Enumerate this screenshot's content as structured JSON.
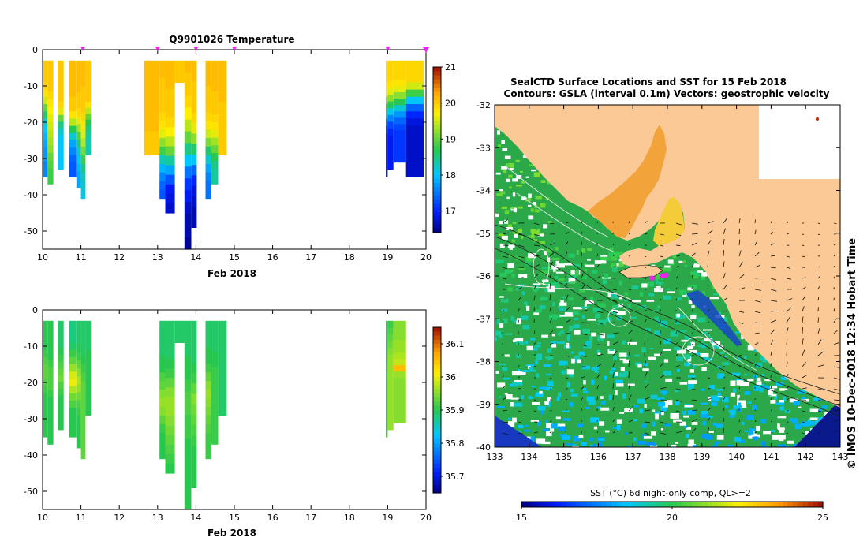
{
  "chart_data": [
    {
      "type": "heatmap",
      "title": "Q9901026  Temperature",
      "xlabel": "Feb 2018",
      "xlim": [
        10,
        20
      ],
      "ylim": [
        -55,
        0
      ],
      "x_ticks": [
        "10",
        "11",
        "12",
        "13",
        "14",
        "15",
        "16",
        "17",
        "18",
        "19",
        "20"
      ],
      "y_ticks": [
        "0",
        "-10",
        "-20",
        "-30",
        "-40",
        "-50"
      ],
      "colorbar": {
        "min": 16.4,
        "max": 21,
        "ticks": [
          "21",
          "20",
          "19",
          "18",
          "17"
        ]
      },
      "profile_markers": [
        11.05,
        13.0,
        14.0,
        15.0,
        19.0,
        20.0
      ],
      "profiles": [
        {
          "x0": 10.02,
          "x1": 10.13,
          "bottom": -35,
          "temps": [
            20.0,
            20.0,
            20.0,
            19.9,
            19.8,
            19.5,
            19.0,
            18.6,
            18.2,
            18.0,
            17.9,
            17.8,
            17.7,
            17.7,
            17.6,
            17.6
          ]
        },
        {
          "x0": 10.13,
          "x1": 10.28,
          "bottom": -37,
          "temps": [
            20.0,
            20.0,
            20.0,
            20.0,
            19.9,
            19.8,
            19.7,
            19.6,
            19.5,
            19.4,
            19.3,
            19.2,
            19.0,
            18.9,
            18.8,
            18.8
          ]
        },
        {
          "x0": 10.4,
          "x1": 10.55,
          "bottom": -33,
          "temps": [
            20.0,
            20.0,
            20.0,
            20.0,
            20.0,
            20.0,
            19.9,
            19.6,
            19.0,
            18.5,
            18.2,
            18.0,
            18.0,
            18.0,
            18.0,
            18.0
          ]
        },
        {
          "x0": 10.7,
          "x1": 10.88,
          "bottom": -35,
          "temps": [
            20.1,
            20.1,
            20.1,
            20.1,
            20.1,
            20.0,
            20.0,
            19.8,
            19.4,
            18.7,
            18.2,
            17.8,
            17.6,
            17.4,
            17.3,
            17.3
          ]
        },
        {
          "x0": 10.88,
          "x1": 11.0,
          "bottom": -38,
          "temps": [
            20.1,
            20.1,
            20.1,
            20.1,
            20.0,
            20.0,
            19.9,
            19.6,
            19.3,
            18.9,
            18.5,
            18.2,
            18.0,
            17.9,
            17.8,
            17.8
          ]
        },
        {
          "x0": 11.0,
          "x1": 11.12,
          "bottom": -41,
          "temps": [
            20.1,
            20.1,
            20.1,
            20.0,
            20.0,
            20.0,
            19.9,
            19.8,
            19.6,
            19.4,
            19.1,
            18.8,
            18.5,
            18.3,
            18.2,
            18.1
          ]
        },
        {
          "x0": 11.12,
          "x1": 11.26,
          "bottom": -29,
          "temps": [
            20.0,
            20.0,
            20.0,
            20.0,
            20.0,
            20.0,
            20.0,
            19.8,
            19.4,
            19.0,
            18.7,
            18.5,
            18.4,
            18.3,
            18.3,
            18.3
          ]
        },
        {
          "x0": 12.65,
          "x1": 13.05,
          "bottom": -29,
          "temps": [
            20.1,
            20.1,
            20.1,
            20.1,
            20.1,
            20.1,
            20.1,
            20.1,
            20.1,
            20.1,
            20.1,
            20.1,
            20.0,
            20.0,
            20.0,
            20.0
          ]
        },
        {
          "x0": 13.05,
          "x1": 13.2,
          "bottom": -41,
          "temps": [
            20.1,
            20.1,
            20.0,
            20.0,
            20.0,
            20.0,
            19.9,
            19.8,
            19.6,
            19.2,
            18.8,
            18.3,
            17.9,
            17.6,
            17.4,
            17.3
          ]
        },
        {
          "x0": 13.2,
          "x1": 13.45,
          "bottom": -45,
          "temps": [
            20.1,
            20.1,
            20.1,
            20.0,
            20.0,
            20.0,
            19.9,
            19.7,
            19.4,
            19.0,
            18.4,
            17.8,
            17.3,
            16.9,
            16.8,
            16.7
          ]
        },
        {
          "x0": 13.45,
          "x1": 13.7,
          "bottom": -9,
          "temps": [
            20.0,
            20.0,
            20.0,
            20.0,
            20.0,
            20.0,
            20.0,
            20.0,
            20.0,
            20.0,
            20.0,
            20.0,
            20.0,
            20.0,
            20.0,
            20.0
          ]
        },
        {
          "x0": 13.7,
          "x1": 13.88,
          "bottom": -55,
          "temps": [
            20.1,
            20.0,
            20.0,
            19.9,
            19.7,
            19.4,
            19.0,
            18.5,
            18.0,
            17.5,
            17.1,
            16.9,
            16.7,
            16.6,
            16.6,
            16.5
          ]
        },
        {
          "x0": 13.88,
          "x1": 14.02,
          "bottom": -49,
          "temps": [
            20.1,
            20.1,
            20.0,
            20.0,
            20.0,
            19.9,
            19.6,
            19.2,
            18.6,
            18.0,
            17.4,
            17.0,
            16.8,
            16.7,
            16.6,
            16.6
          ]
        },
        {
          "x0": 14.25,
          "x1": 14.4,
          "bottom": -41,
          "temps": [
            20.1,
            20.1,
            20.1,
            20.0,
            20.0,
            20.0,
            19.9,
            19.8,
            19.5,
            19.1,
            18.6,
            18.2,
            17.8,
            17.6,
            17.5,
            17.5
          ]
        },
        {
          "x0": 14.4,
          "x1": 14.58,
          "bottom": -37,
          "temps": [
            20.1,
            20.1,
            20.1,
            20.1,
            20.0,
            20.0,
            20.0,
            19.9,
            19.8,
            19.6,
            19.3,
            19.0,
            18.7,
            18.5,
            18.4,
            18.4
          ]
        },
        {
          "x0": 14.58,
          "x1": 14.8,
          "bottom": -29,
          "temps": [
            20.1,
            20.1,
            20.1,
            20.1,
            20.1,
            20.1,
            20.1,
            20.0,
            20.0,
            20.0,
            20.0,
            20.0,
            20.0,
            20.0,
            20.0,
            20.0
          ]
        },
        {
          "x0": 18.95,
          "x1": 19.0,
          "bottom": -35,
          "temps": [
            19.9,
            19.9,
            19.9,
            19.8,
            19.6,
            19.2,
            18.6,
            18.0,
            17.5,
            17.2,
            17.0,
            17.0,
            17.0,
            17.0,
            17.0,
            17.0
          ]
        },
        {
          "x0": 19.0,
          "x1": 19.15,
          "bottom": -33,
          "temps": [
            19.9,
            19.9,
            19.9,
            19.8,
            19.6,
            19.2,
            18.7,
            18.1,
            17.6,
            17.2,
            17.0,
            16.9,
            16.9,
            16.9,
            16.9,
            16.9
          ]
        },
        {
          "x0": 19.15,
          "x1": 19.48,
          "bottom": -31,
          "temps": [
            19.9,
            19.9,
            19.9,
            19.8,
            19.6,
            19.2,
            18.7,
            18.2,
            17.7,
            17.4,
            17.2,
            17.1,
            17.1,
            17.1,
            17.1,
            17.1
          ]
        },
        {
          "x0": 19.48,
          "x1": 19.95,
          "bottom": -35,
          "temps": [
            19.9,
            19.9,
            19.9,
            19.5,
            18.8,
            18.0,
            17.4,
            17.0,
            16.8,
            16.7,
            16.7,
            16.7,
            16.7,
            16.7,
            16.7,
            16.7
          ]
        }
      ]
    },
    {
      "type": "heatmap",
      "title": "",
      "xlabel": "Feb 2018",
      "xlim": [
        10,
        20
      ],
      "ylim": [
        -55,
        0
      ],
      "x_ticks": [
        "10",
        "11",
        "12",
        "13",
        "14",
        "15",
        "16",
        "17",
        "18",
        "19",
        "20"
      ],
      "y_ticks": [
        "0",
        "-10",
        "-20",
        "-30",
        "-40",
        "-50"
      ],
      "colorbar": {
        "min": 35.65,
        "max": 36.15,
        "ticks": [
          "36.1",
          "36",
          "35.9",
          "35.8",
          "35.7"
        ]
      },
      "profiles": [
        {
          "x0": 10.02,
          "x1": 10.13,
          "bottom": -35,
          "values": [
            35.9,
            35.9,
            35.9,
            35.9,
            35.91,
            35.92,
            35.93,
            35.93,
            35.92,
            35.91,
            35.9,
            35.9,
            35.9,
            35.9,
            35.9,
            35.9
          ]
        },
        {
          "x0": 10.13,
          "x1": 10.28,
          "bottom": -37,
          "values": [
            35.9,
            35.9,
            35.9,
            35.9,
            35.9,
            35.91,
            35.92,
            35.92,
            35.92,
            35.91,
            35.9,
            35.9,
            35.9,
            35.9,
            35.9,
            35.9
          ]
        },
        {
          "x0": 10.4,
          "x1": 10.55,
          "bottom": -33,
          "values": [
            35.89,
            35.89,
            35.89,
            35.89,
            35.9,
            35.91,
            35.92,
            35.93,
            35.94,
            35.92,
            35.91,
            35.9,
            35.9,
            35.9,
            35.9,
            35.9
          ]
        },
        {
          "x0": 10.7,
          "x1": 10.88,
          "bottom": -35,
          "values": [
            35.88,
            35.88,
            35.88,
            35.89,
            35.91,
            35.93,
            35.96,
            35.99,
            36.0,
            35.97,
            35.94,
            35.92,
            35.9,
            35.9,
            35.9,
            35.9
          ]
        },
        {
          "x0": 10.88,
          "x1": 11.0,
          "bottom": -38,
          "values": [
            35.89,
            35.89,
            35.89,
            35.9,
            35.91,
            35.93,
            35.95,
            35.97,
            35.96,
            35.94,
            35.92,
            35.91,
            35.9,
            35.9,
            35.9,
            35.9
          ]
        },
        {
          "x0": 11.0,
          "x1": 11.12,
          "bottom": -41,
          "values": [
            35.89,
            35.89,
            35.89,
            35.89,
            35.9,
            35.91,
            35.92,
            35.93,
            35.93,
            35.93,
            35.93,
            35.93,
            35.93,
            35.93,
            35.93,
            35.93
          ]
        },
        {
          "x0": 11.12,
          "x1": 11.26,
          "bottom": -29,
          "values": [
            35.89,
            35.89,
            35.89,
            35.89,
            35.89,
            35.9,
            35.9,
            35.9,
            35.9,
            35.9,
            35.9,
            35.9,
            35.9,
            35.9,
            35.9,
            35.9
          ]
        },
        {
          "x0": 13.05,
          "x1": 13.2,
          "bottom": -41,
          "values": [
            35.89,
            35.89,
            35.89,
            35.89,
            35.9,
            35.9,
            35.92,
            35.93,
            35.95,
            35.96,
            35.95,
            35.93,
            35.91,
            35.9,
            35.9,
            35.9
          ]
        },
        {
          "x0": 13.2,
          "x1": 13.45,
          "bottom": -45,
          "values": [
            35.89,
            35.89,
            35.89,
            35.89,
            35.9,
            35.91,
            35.93,
            35.95,
            35.96,
            35.96,
            35.95,
            35.94,
            35.93,
            35.92,
            35.91,
            35.9
          ]
        },
        {
          "x0": 13.45,
          "x1": 13.7,
          "bottom": -9,
          "values": [
            35.89,
            35.89,
            35.89,
            35.89,
            35.89,
            35.89,
            35.89,
            35.89,
            35.89,
            35.89,
            35.89,
            35.89,
            35.89,
            35.89,
            35.89,
            35.89
          ]
        },
        {
          "x0": 13.7,
          "x1": 13.88,
          "bottom": -55,
          "values": [
            35.89,
            35.89,
            35.89,
            35.9,
            35.9,
            35.91,
            35.92,
            35.92,
            35.91,
            35.91,
            35.9,
            35.9,
            35.9,
            35.9,
            35.9,
            35.9
          ]
        },
        {
          "x0": 13.88,
          "x1": 14.02,
          "bottom": -49,
          "values": [
            35.89,
            35.89,
            35.89,
            35.89,
            35.9,
            35.91,
            35.93,
            35.95,
            35.94,
            35.93,
            35.92,
            35.91,
            35.9,
            35.9,
            35.9,
            35.9
          ]
        },
        {
          "x0": 14.25,
          "x1": 14.4,
          "bottom": -41,
          "values": [
            35.89,
            35.89,
            35.89,
            35.9,
            35.9,
            35.91,
            35.93,
            35.95,
            35.96,
            35.95,
            35.94,
            35.93,
            35.92,
            35.91,
            35.91,
            35.91
          ]
        },
        {
          "x0": 14.4,
          "x1": 14.58,
          "bottom": -37,
          "values": [
            35.89,
            35.89,
            35.89,
            35.89,
            35.9,
            35.9,
            35.91,
            35.91,
            35.91,
            35.91,
            35.91,
            35.91,
            35.91,
            35.91,
            35.91,
            35.91
          ]
        },
        {
          "x0": 14.58,
          "x1": 14.8,
          "bottom": -29,
          "values": [
            35.89,
            35.89,
            35.89,
            35.89,
            35.89,
            35.89,
            35.89,
            35.89,
            35.89,
            35.89,
            35.89,
            35.89,
            35.89,
            35.89,
            35.89,
            35.89
          ]
        },
        {
          "x0": 18.95,
          "x1": 19.0,
          "bottom": -35,
          "values": [
            35.89,
            35.89,
            35.89,
            35.89,
            35.9,
            35.9,
            35.91,
            35.91,
            35.91,
            35.91,
            35.91,
            35.91,
            35.91,
            35.91,
            35.91,
            35.91
          ]
        },
        {
          "x0": 19.0,
          "x1": 19.15,
          "bottom": -33,
          "values": [
            35.91,
            35.92,
            35.93,
            35.94,
            35.95,
            35.96,
            35.96,
            35.96,
            35.96,
            35.96,
            35.96,
            35.96,
            35.96,
            35.96,
            35.96,
            35.96
          ]
        },
        {
          "x0": 19.15,
          "x1": 19.48,
          "bottom": -31,
          "values": [
            35.95,
            35.95,
            35.95,
            35.96,
            35.96,
            35.97,
            35.98,
            36.05,
            35.96,
            35.95,
            35.95,
            35.95,
            35.95,
            35.95,
            35.95,
            35.95
          ]
        }
      ]
    },
    {
      "type": "heatmap",
      "title": "SealCTD Surface Locations and SST for 15 Feb 2018",
      "subtitle": "Contours: GSLA (interval 0.1m)  Vectors: geostrophic velocity",
      "xlim": [
        133,
        143
      ],
      "ylim": [
        -40,
        -32
      ],
      "x_ticks": [
        "133",
        "134",
        "135",
        "136",
        "137",
        "138",
        "139",
        "140",
        "141",
        "142",
        "143"
      ],
      "y_ticks": [
        "-32",
        "-33",
        "-34",
        "-35",
        "-36",
        "-37",
        "-38",
        "-39",
        "-40"
      ],
      "colorbar": {
        "label": "SST (°C) 6d night-only comp, QL>=2",
        "min": 15,
        "max": 25,
        "ticks": [
          "15",
          "20",
          "25"
        ]
      },
      "seal_locations": [
        [
          137.55,
          -36.05
        ],
        [
          137.85,
          -36.0
        ],
        [
          137.95,
          -35.98
        ]
      ],
      "side_label": "IMOS 10-Dec-2018 12:34 Hobart Time",
      "copyright": "©"
    }
  ],
  "colors": {
    "land": "#fbc995",
    "marker": "#ee22ee"
  }
}
